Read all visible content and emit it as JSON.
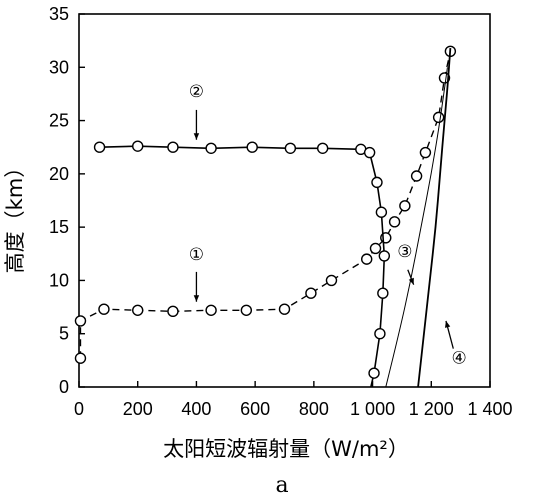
{
  "chart_data": {
    "type": "line",
    "title": "",
    "xlabel": "太阳短波辐射量（W/m²）",
    "ylabel": "高度（km）",
    "xlim": [
      0,
      1400
    ],
    "ylim": [
      0,
      35
    ],
    "x_ticks": [
      "0",
      "200",
      "400",
      "600",
      "800",
      "1 000",
      "1 200",
      "1 400"
    ],
    "y_ticks": [
      "0",
      "5",
      "10",
      "15",
      "20",
      "25",
      "30",
      "35"
    ],
    "grid": false,
    "series": [
      {
        "name": "①",
        "style": "dashed",
        "marker": "circle",
        "x": [
          5,
          5,
          85,
          200,
          320,
          450,
          570,
          700,
          790,
          860,
          980,
          1010,
          1045,
          1075,
          1110,
          1150,
          1180,
          1225,
          1245,
          1265
        ],
        "y": [
          2.7,
          6.2,
          7.3,
          7.2,
          7.1,
          7.2,
          7.2,
          7.3,
          8.8,
          10.0,
          12.0,
          13.0,
          14.0,
          15.5,
          17.0,
          19.8,
          22.0,
          25.3,
          29.0,
          31.5
        ]
      },
      {
        "name": "②",
        "style": "solid",
        "marker": "circle",
        "x": [
          70,
          200,
          320,
          450,
          590,
          720,
          830,
          960,
          990,
          1015,
          1030,
          1040,
          1035,
          1025,
          1005,
          990,
          975
        ],
        "y": [
          22.5,
          22.6,
          22.5,
          22.4,
          22.5,
          22.4,
          22.4,
          22.3,
          22.0,
          19.2,
          16.4,
          12.3,
          8.8,
          5.0,
          1.3,
          -0.5,
          -1.0
        ]
      },
      {
        "name": "③",
        "style": "solid",
        "marker": "none",
        "x": [
          1045,
          1090,
          1130,
          1165,
          1200,
          1230,
          1255
        ],
        "y": [
          0,
          5,
          10,
          15,
          20,
          25,
          30
        ]
      },
      {
        "name": "④",
        "style": "solid",
        "marker": "none",
        "x": [
          1155,
          1175,
          1195,
          1215,
          1230,
          1245,
          1255,
          1265
        ],
        "y": [
          0,
          5,
          10,
          15,
          20,
          25,
          28,
          31.8
        ]
      }
    ],
    "annotations": [
      {
        "text": "②",
        "series": "②"
      },
      {
        "text": "①",
        "series": "①"
      },
      {
        "text": "③",
        "series": "③"
      },
      {
        "text": "④",
        "series": "④"
      }
    ],
    "caption": "a"
  }
}
